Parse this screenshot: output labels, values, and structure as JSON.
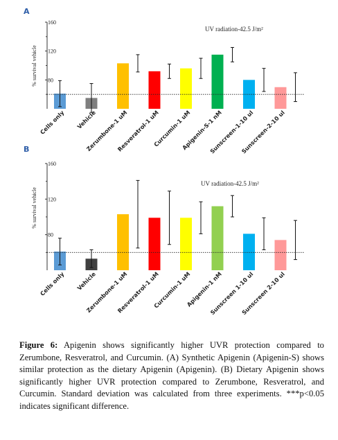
{
  "charts": [
    {
      "type": "bar",
      "panel_label": "A",
      "ylabel": "% survival vehicle",
      "annotation": "UV radiation-42.5 J/m²",
      "y_ticks": [
        80,
        120,
        160
      ],
      "ylim": [
        40,
        160
      ],
      "reference_line": 60,
      "categories": [
        "Cells only",
        "Vehicle",
        "Zerumbone-1 uM",
        "Resveratrol-1 uM",
        "Curcumin-1 uM",
        "Apigenin-S-1 nM",
        "Sunscreen-1-10 ul",
        "Sunscreen-2-10 ul"
      ],
      "values": [
        61,
        55,
        103,
        92,
        96,
        115,
        80,
        70
      ],
      "errors": [
        18,
        20,
        12,
        10,
        14,
        10,
        16,
        20
      ],
      "colors": [
        "#5b9bd5",
        "#7f7f7f",
        "#ffc000",
        "#ff0000",
        "#ffff00",
        "#00b050",
        "#00b0f0",
        "#ff9999"
      ]
    },
    {
      "type": "bar",
      "panel_label": "B",
      "ylabel": "% survival vehicle",
      "annotation": "UV radiation-42.5 J/m²",
      "y_ticks": [
        80,
        120,
        160
      ],
      "ylim": [
        40,
        160
      ],
      "reference_line": 60,
      "categories": [
        "Cells only",
        "Vehicle",
        "Zerumbone-1 uM",
        "Resveratrol-1 uM",
        "Curcumin-1 uM",
        "Apigenin-1 nM",
        "Sunscreen 1-10 ul",
        "Sunscreen 2-10 ul"
      ],
      "values": [
        61,
        53,
        103,
        99,
        99,
        112,
        81,
        74
      ],
      "errors": [
        15,
        10,
        38,
        30,
        18,
        12,
        18,
        22
      ],
      "colors": [
        "#5b9bd5",
        "#404040",
        "#ffc000",
        "#ff0000",
        "#ffff00",
        "#92d050",
        "#00b0f0",
        "#ff9999"
      ]
    }
  ],
  "caption": {
    "label": "Figure 6:",
    "text": "Apigenin shows significantly higher UVR protection compared to Zerumbone, Resveratrol, and Curcumin. (A) Synthetic Apigenin (Apigenin-S) shows similar protection as the dietary Apigenin (Apigenin). (B) Dietary Apigenin shows significantly higher UVR protection compared to Zerumbone, Resveratrol, and Curcumin. Standard deviation was calculated from three experiments. ***p<0.05 indicates significant difference."
  }
}
